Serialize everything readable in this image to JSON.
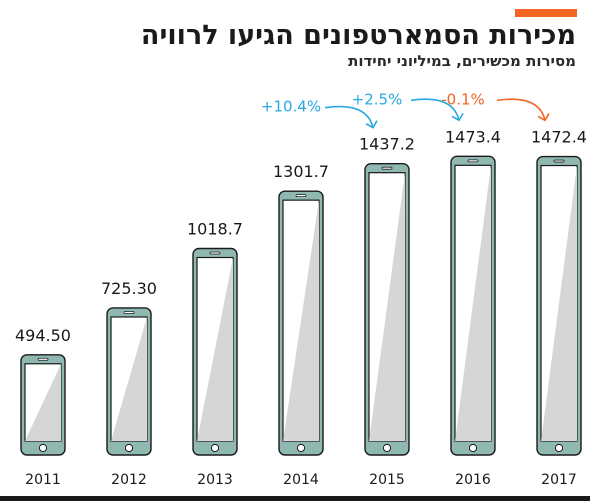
{
  "header": {
    "title": "מכירות הסמארטפונים הגיעו לרוויה",
    "subtitle": "מסירות מכשירים, במיליוני יחידות"
  },
  "colors": {
    "accent": "#f26522",
    "increase": "#29a8e0",
    "decrease": "#f26522",
    "phone_body": "#8fb8b0",
    "phone_outline": "#1a1a1a",
    "screen": "#d6d6d6"
  },
  "chart_data": {
    "type": "bar",
    "title": "מכירות הסמארטפונים הגיעו לרוויה",
    "subtitle": "מסירות מכשירים, במיליוני יחידות",
    "categories": [
      "2011",
      "2012",
      "2013",
      "2014",
      "2015",
      "2016",
      "2017"
    ],
    "values": [
      494.5,
      725.3,
      1018.7,
      1301.7,
      1437.2,
      1473.4,
      1472.4
    ],
    "value_labels": [
      "494.50",
      "725.30",
      "1018.7",
      "1301.7",
      "1437.2",
      "1473.4",
      "1472.4"
    ],
    "annotations": [
      {
        "from": "2014",
        "to": "2015",
        "text": "+10.4%",
        "color": "#29a8e0"
      },
      {
        "from": "2015",
        "to": "2016",
        "text": "+2.5%",
        "color": "#29a8e0"
      },
      {
        "from": "2016",
        "to": "2017",
        "text": "-0.1%",
        "color": "#f26522"
      }
    ],
    "grid": false
  }
}
